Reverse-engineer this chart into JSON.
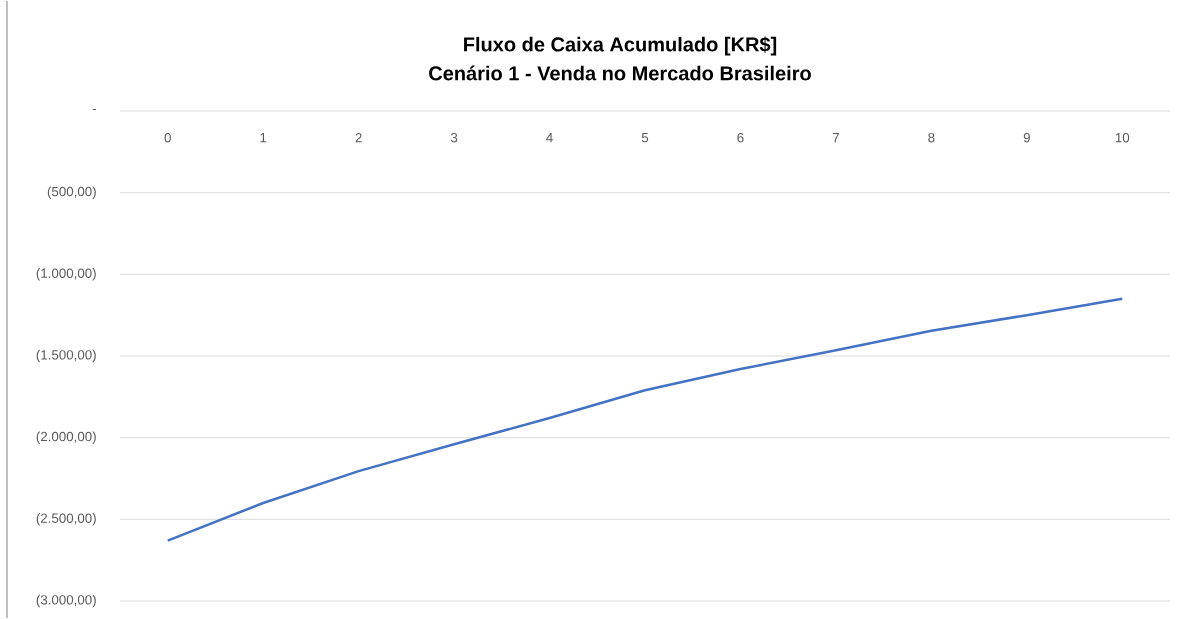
{
  "chart_data": {
    "type": "line",
    "title": "Fluxo de Caixa Acumulado [KR$]",
    "subtitle": "Cenário 1 - Venda no Mercado Brasileiro",
    "categories": [
      "0",
      "1",
      "2",
      "3",
      "4",
      "5",
      "6",
      "7",
      "8",
      "9",
      "10"
    ],
    "series": [
      {
        "color": "#4472c4",
        "values": [
          -2630,
          -2400,
          -2205,
          -2040,
          -1880,
          -1710,
          -1580,
          -1465,
          -1345,
          -1250,
          -1150
        ]
      }
    ],
    "ylim": [
      -3000,
      0
    ],
    "yticks": [
      {
        "value": -3000,
        "label": "(3.000,00)"
      },
      {
        "value": -2500,
        "label": "(2.500,00)"
      },
      {
        "value": -2000,
        "label": "(2.000,00)"
      },
      {
        "value": -1500,
        "label": "(1.500,00)"
      },
      {
        "value": -1000,
        "label": "(1.000,00)"
      },
      {
        "value": -500,
        "label": "(500,00)"
      },
      {
        "value": 0,
        "label": "-"
      }
    ],
    "grid": "y",
    "marker": "none"
  }
}
